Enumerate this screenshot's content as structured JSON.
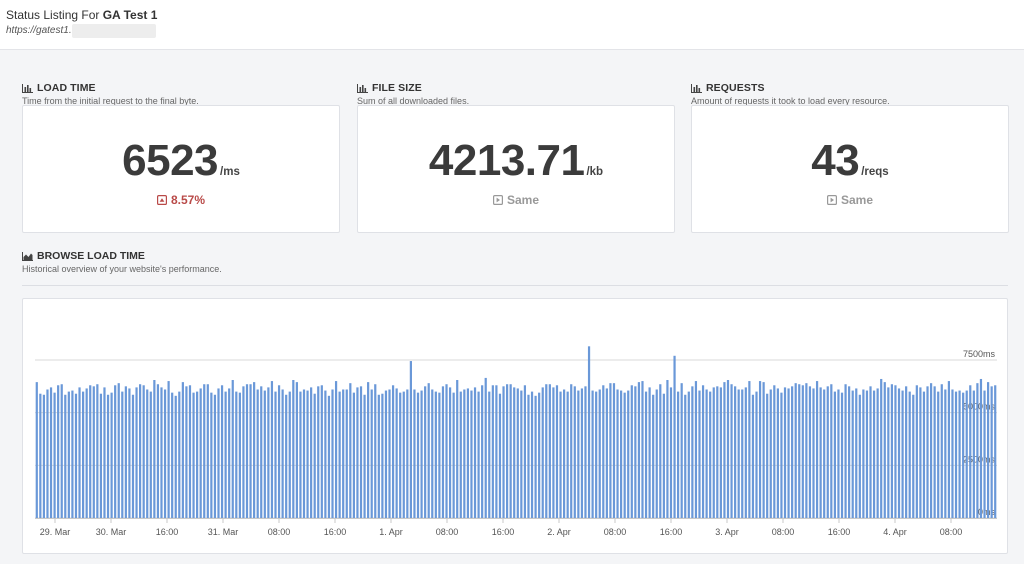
{
  "header": {
    "title_prefix": "Status Listing For",
    "site_name": "GA Test 1",
    "url": "https://gatest1."
  },
  "metrics": [
    {
      "heading": "LOAD TIME",
      "description": "Time from the initial request to the final byte.",
      "value": "6523",
      "unit": "/ms",
      "change": "8.57%",
      "change_state": "up"
    },
    {
      "heading": "FILE SIZE",
      "description": "Sum of all downloaded files.",
      "value": "4213.71",
      "unit": "/kb",
      "change": "Same",
      "change_state": "same"
    },
    {
      "heading": "REQUESTS",
      "description": "Amount of requests it took to load every resource.",
      "value": "43",
      "unit": "/reqs",
      "change": "Same",
      "change_state": "same"
    }
  ],
  "browse": {
    "heading": "BROWSE LOAD TIME",
    "description": "Historical overview of your website's performance."
  },
  "colors": {
    "bar": "#6a98d8",
    "up": "#b94a48",
    "same": "#999999"
  },
  "chart_data": {
    "type": "bar",
    "ylim": [
      0,
      7500
    ],
    "y_ticks": [
      {
        "value": 0,
        "label": "0ms"
      },
      {
        "value": 2500,
        "label": "2500ms"
      },
      {
        "value": 5000,
        "label": "5000ms"
      },
      {
        "value": 7500,
        "label": "7500ms"
      }
    ],
    "x_tick_labels": [
      "29. Mar",
      "30. Mar",
      "16:00",
      "31. Mar",
      "08:00",
      "16:00",
      "1. Apr",
      "08:00",
      "16:00",
      "2. Apr",
      "08:00",
      "16:00",
      "3. Apr",
      "08:00",
      "16:00",
      "4. Apr",
      "08:00"
    ],
    "grid": true,
    "values": [
      6450,
      5900,
      5850,
      6100,
      6200,
      5950,
      6300,
      6350,
      5850,
      6000,
      6050,
      5900,
      6200,
      6000,
      6150,
      6300,
      6250,
      6350,
      5900,
      6200,
      5850,
      5950,
      6300,
      6400,
      6000,
      6250,
      6150,
      5850,
      6200,
      6350,
      6300,
      6100,
      6000,
      6550,
      6350,
      6200,
      6100,
      6500,
      5950,
      5800,
      6000,
      6450,
      6250,
      6300,
      5950,
      6000,
      6150,
      6350,
      6350,
      5950,
      5850,
      6150,
      6300,
      6000,
      6150,
      6550,
      6000,
      5950,
      6250,
      6350,
      6350,
      6450,
      6100,
      6250,
      6050,
      6200,
      6500,
      6000,
      6300,
      6100,
      5850,
      6000,
      6550,
      6450,
      6000,
      6100,
      6050,
      6200,
      5900,
      6250,
      6300,
      6050,
      5800,
      6100,
      6500,
      6000,
      6100,
      6100,
      6400,
      5950,
      6200,
      6250,
      5850,
      6450,
      6100,
      6350,
      5850,
      5900,
      6050,
      6100,
      6300,
      6150,
      5950,
      6000,
      6100,
      7450,
      6100,
      5950,
      6050,
      6250,
      6400,
      6100,
      6000,
      5950,
      6250,
      6350,
      6200,
      5950,
      6550,
      6000,
      6100,
      6150,
      6050,
      6200,
      6000,
      6300,
      6650,
      6000,
      6300,
      6300,
      5900,
      6250,
      6350,
      6350,
      6200,
      6150,
      6050,
      6300,
      5850,
      6000,
      5800,
      5950,
      6200,
      6350,
      6350,
      6200,
      6300,
      6000,
      6100,
      6000,
      6350,
      6250,
      6050,
      6150,
      6250,
      8150,
      6050,
      6000,
      6100,
      6300,
      6150,
      6400,
      6400,
      6100,
      6050,
      5950,
      6050,
      6300,
      6250,
      6450,
      6500,
      6000,
      6200,
      5850,
      6100,
      6350,
      5900,
      6550,
      6200,
      7700,
      6000,
      6400,
      5850,
      6000,
      6250,
      6500,
      6050,
      6300,
      6100,
      6000,
      6200,
      6250,
      6200,
      6450,
      6550,
      6350,
      6250,
      6100,
      6100,
      6200,
      6500,
      5850,
      6000,
      6500,
      6450,
      5900,
      6100,
      6300,
      6150,
      5950,
      6200,
      6150,
      6250,
      6400,
      6350,
      6300,
      6400,
      6250,
      6150,
      6500,
      6200,
      6100,
      6250,
      6350,
      6000,
      6100,
      5950,
      6350,
      6250,
      6050,
      6150,
      5850,
      6100,
      6050,
      6250,
      6050,
      6150,
      6600,
      6450,
      6200,
      6350,
      6300,
      6150,
      6050,
      6250,
      6000,
      5850,
      6300,
      6200,
      6000,
      6250,
      6400,
      6250,
      6000,
      6350,
      6100,
      6500,
      6100,
      6000,
      6050,
      5950,
      6050,
      6300,
      6050,
      6400,
      6600,
      6050,
      6450,
      6250,
      6300
    ]
  }
}
